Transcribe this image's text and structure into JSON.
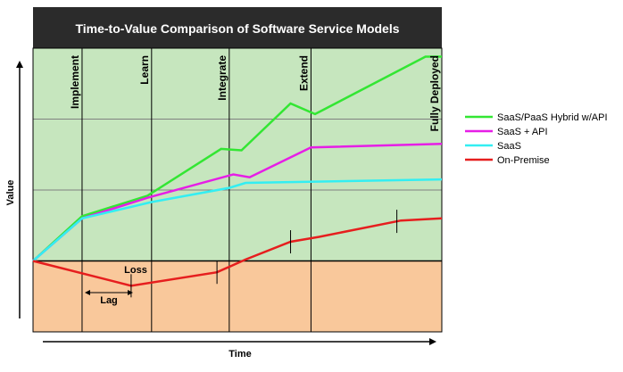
{
  "chart_data": {
    "type": "line",
    "title": "Time-to-Value Comparison of Software Service Models",
    "xlabel": "Time",
    "ylabel": "Value",
    "phases": [
      "Implement",
      "Learn",
      "Integrate",
      "Extend",
      "Fully Deployed"
    ],
    "phase_positions": [
      0.12,
      0.29,
      0.48,
      0.68,
      1.0
    ],
    "ylim": [
      -1,
      3
    ],
    "xlim": [
      0,
      1
    ],
    "grid": true,
    "legend_position": "right",
    "regions": [
      {
        "name": "gain",
        "from": 0,
        "to": 3,
        "color": "#c6e6be"
      },
      {
        "name": "loss",
        "from": -1,
        "to": 0,
        "color": "#f9c89b"
      }
    ],
    "series": [
      {
        "name": "SaaS/PaaS Hybrid w/API",
        "color": "#33e633",
        "x": [
          0,
          0.12,
          0.28,
          0.46,
          0.51,
          0.63,
          0.69,
          0.96,
          1.0
        ],
        "y": [
          0,
          0.63,
          0.92,
          1.58,
          1.56,
          2.22,
          2.07,
          2.88,
          2.88
        ]
      },
      {
        "name": "SaaS + API",
        "color": "#e61ee6",
        "x": [
          0,
          0.12,
          0.28,
          0.49,
          0.53,
          0.68,
          1.0
        ],
        "y": [
          0,
          0.6,
          0.89,
          1.22,
          1.18,
          1.6,
          1.65
        ]
      },
      {
        "name": "SaaS",
        "color": "#33eef2",
        "x": [
          0,
          0.12,
          0.29,
          0.48,
          0.52,
          1.0
        ],
        "y": [
          0,
          0.6,
          0.83,
          1.03,
          1.1,
          1.15
        ]
      },
      {
        "name": "On-Premise",
        "color": "#e61e1e",
        "x": [
          0,
          0.24,
          0.45,
          0.52,
          0.63,
          0.7,
          0.9,
          1.0
        ],
        "y": [
          0,
          -0.35,
          -0.16,
          0.02,
          0.27,
          0.34,
          0.57,
          0.6
        ]
      }
    ],
    "annotations": [
      {
        "text": "Loss"
      },
      {
        "text": "Lag"
      }
    ]
  }
}
